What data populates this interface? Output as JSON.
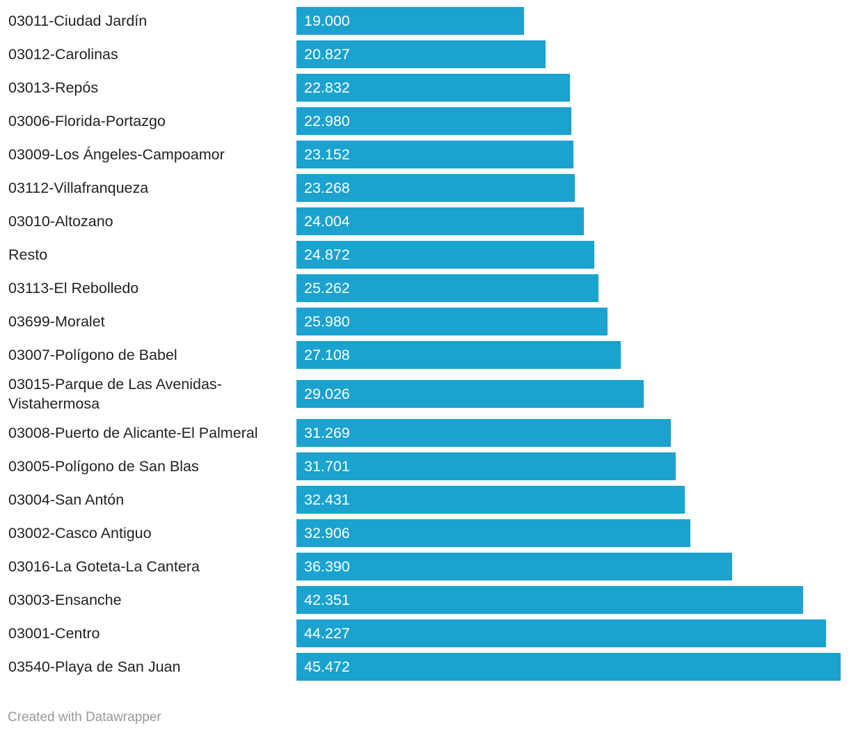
{
  "chart_data": {
    "type": "bar",
    "categories": [
      "03011-Ciudad Jardín",
      "03012-Carolinas",
      "03013-Repós",
      "03006-Florida-Portazgo",
      "03009-Los Ángeles-Campoamor",
      "03112-Villafranqueza",
      "03010-Altozano",
      "Resto",
      "03113-El Rebolledo",
      "03699-Moralet",
      "03007-Polígono de Babel",
      "03015-Parque de Las Avenidas-Vistahermosa",
      "03008-Puerto de Alicante-El Palmeral",
      "03005-Polígono de San Blas",
      "03004-San Antón",
      "03002-Casco Antiguo",
      "03016-La Goteta-La Cantera",
      "03003-Ensanche",
      "03001-Centro",
      "03540-Playa de San Juan"
    ],
    "values": [
      19000,
      20827,
      22832,
      22980,
      23152,
      23268,
      24004,
      24872,
      25262,
      25980,
      27108,
      29026,
      31269,
      31701,
      32431,
      32906,
      36390,
      42351,
      44227,
      45472
    ],
    "value_labels": [
      "19.000",
      "20.827",
      "22.832",
      "22.980",
      "23.152",
      "23.268",
      "24.004",
      "24.872",
      "25.262",
      "25.980",
      "27.108",
      "29.026",
      "31.269",
      "31.701",
      "32.431",
      "32.906",
      "36.390",
      "42.351",
      "44.227",
      "45.472"
    ],
    "color": "#1ba2cf"
  },
  "footer": "Created with Datawrapper"
}
